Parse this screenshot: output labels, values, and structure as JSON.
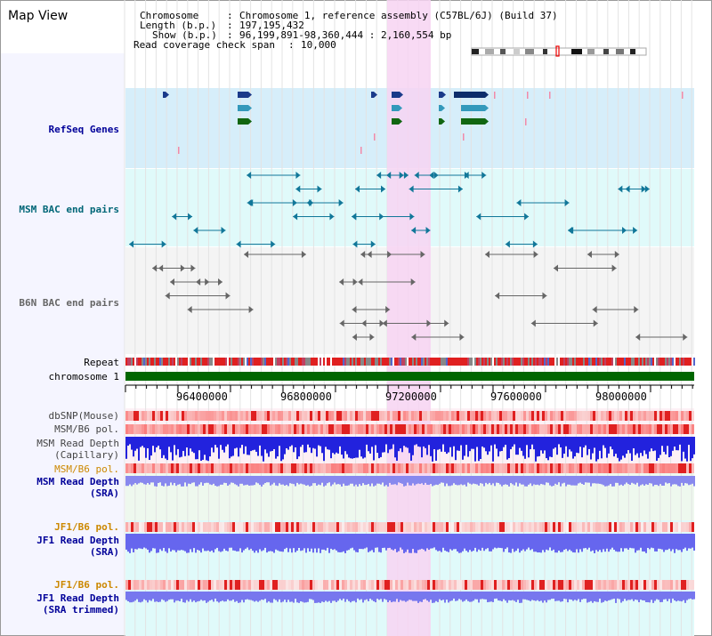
{
  "title": "Map View",
  "info": {
    "chromosome_label": "Chromosome",
    "chromosome_value": "Chromosome 1, reference assembly (C57BL/6J) (Build 37)",
    "length_label": "Length (b.p.)",
    "length_value": "197,195,432",
    "show_label": "Show (b.p.)",
    "show_value": "96,199,891-98,360,444 : 2,160,554 bp",
    "coverage_label": "Read coverage check span",
    "coverage_value": "10,000",
    "sep": ":"
  },
  "tracks": {
    "refseq": "RefSeq Genes",
    "msm_bac": "MSM BAC end pairs",
    "b6n_bac": "B6N BAC end pairs",
    "repeat": "Repeat",
    "chromosome": "chromosome 1",
    "dbsnp": "dbSNP(Mouse)",
    "msm_b6_pol_1": "MSM/B6 pol.",
    "msm_read_depth_cap_1": "MSM Read Depth",
    "msm_read_depth_cap_2": "(Capillary)",
    "msm_b6_pol_2": "MSM/B6 pol.",
    "msm_read_depth_sra_1": "MSM Read Depth",
    "msm_read_depth_sra_2": "(SRA)",
    "jf1_b6_pol_1": "JF1/B6 pol.",
    "jf1_read_depth_sra_1": "JF1 Read Depth",
    "jf1_read_depth_sra_2": "(SRA)",
    "jf1_b6_pol_2": "JF1/B6 pol.",
    "jf1_read_depth_trim_1": "JF1 Read Depth",
    "jf1_read_depth_trim_2": "(SRA trimmed)"
  },
  "axis_ticks": [
    "96400000",
    "96800000",
    "97200000",
    "97600000",
    "98000000"
  ],
  "colors": {
    "refseq_bg": "#d6eefa",
    "msm_bg": "#e0fafa",
    "highlight": "#f7d4f2",
    "chromosome_bar": "#006600",
    "refseq_label": "#000099",
    "msm_label": "#006677",
    "b6n_label": "#666666",
    "pol_orange": "#cc8800",
    "depth_blue": "#000099"
  }
}
